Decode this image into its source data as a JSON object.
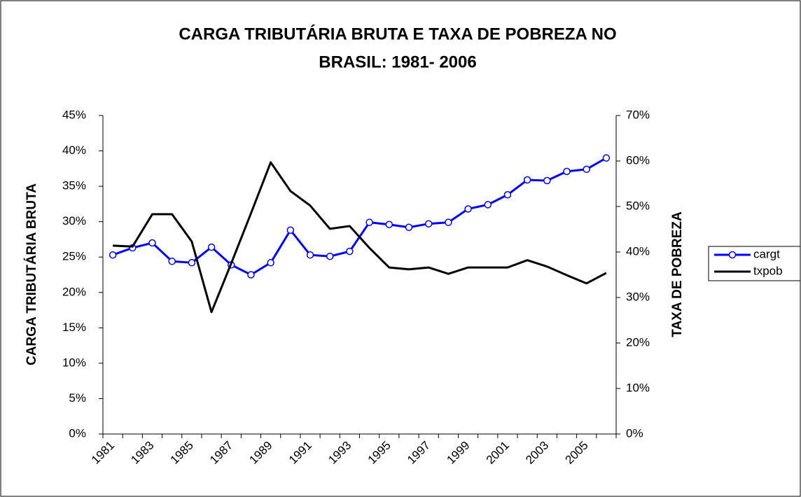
{
  "chart_data": {
    "type": "line",
    "title": [
      "CARGA TRIBUTÁRIA BRUTA E TAXA DE POBREZA NO",
      "BRASIL: 1981- 2006"
    ],
    "y_label": "CARGA TRIBUTÁRIA BRUTA",
    "y2_label": "TAXA DE POBREZA",
    "categories": [
      "1981",
      null,
      "1983",
      null,
      "1985",
      null,
      "1987",
      null,
      "1989",
      null,
      "1991",
      null,
      "1993",
      null,
      "1995",
      null,
      "1997",
      null,
      "1999",
      null,
      "2001",
      null,
      "2003",
      null,
      "2005",
      null
    ],
    "series": [
      {
        "name": "cargt",
        "color": "#0000ff",
        "values": [
          25.3,
          26.3,
          27.0,
          24.4,
          24.2,
          26.4,
          23.9,
          22.5,
          24.2,
          28.8,
          25.3,
          25.1,
          25.8,
          29.9,
          29.6,
          29.2,
          29.7,
          29.9,
          31.8,
          32.4,
          33.8,
          35.9,
          35.8,
          37.1,
          37.4,
          39.0
        ]
      },
      {
        "name": "txpob",
        "color": "#000000",
        "axis": "y2",
        "values": [
          41.4,
          41.2,
          48.3,
          48.3,
          42.3,
          26.8,
          37.5,
          48.5,
          59.7,
          53.4,
          50.2,
          45.1,
          45.7,
          40.9,
          36.6,
          36.2,
          36.6,
          35.2,
          36.6,
          36.6,
          36.6,
          38.2,
          36.8,
          34.9,
          33.1,
          35.4
        ]
      }
    ],
    "ylim": [
      0,
      45
    ],
    "yticks": [
      {
        "value": 0,
        "label": "0%"
      },
      {
        "value": 5,
        "label": "5%"
      },
      {
        "value": 10,
        "label": "10%"
      },
      {
        "value": 15,
        "label": "15%"
      },
      {
        "value": 20,
        "label": "20%"
      },
      {
        "value": 25,
        "label": "25%"
      },
      {
        "value": 30,
        "label": "30%"
      },
      {
        "value": 35,
        "label": "35%"
      },
      {
        "value": 40,
        "label": "40%"
      },
      {
        "value": 45,
        "label": "45%"
      }
    ],
    "y2lim": [
      0,
      70
    ],
    "y2ticks": [
      {
        "value": 0,
        "label": "0%"
      },
      {
        "value": 10,
        "label": "10%"
      },
      {
        "value": 20,
        "label": "20%"
      },
      {
        "value": 30,
        "label": "30%"
      },
      {
        "value": 40,
        "label": "40%"
      },
      {
        "value": 50,
        "label": "50%"
      },
      {
        "value": 60,
        "label": "60%"
      },
      {
        "value": 70,
        "label": "70%"
      }
    ],
    "legend": "right"
  }
}
